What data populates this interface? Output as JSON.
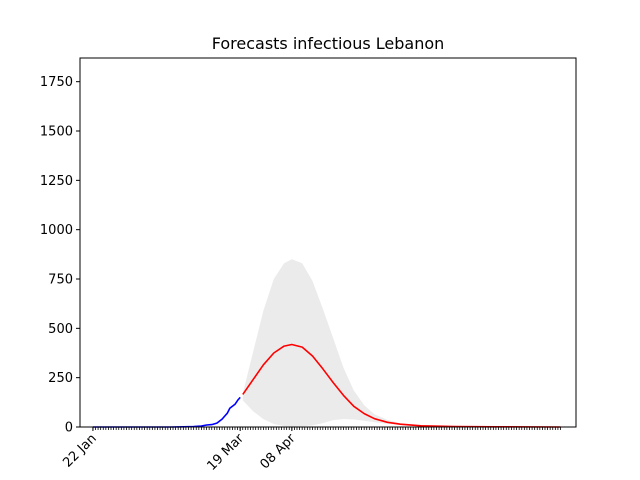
{
  "chart_data": {
    "type": "line",
    "title": "Forecasts infectious Lebanon",
    "xlabel": "",
    "ylabel": "",
    "x_axis": {
      "type": "date",
      "start": "2020-01-22",
      "end": "2020-07-21",
      "tick_labels": [
        "22 Jan",
        "19 Mar",
        "08 Apr"
      ],
      "tick_dates": [
        "2020-01-22",
        "2020-03-19",
        "2020-04-08"
      ]
    },
    "ylim": [
      0,
      1870
    ],
    "y_ticks": [
      0,
      250,
      500,
      750,
      1000,
      1250,
      1500,
      1750
    ],
    "grid": false,
    "series": [
      {
        "role": "observed",
        "color": "#0000ff",
        "points": [
          [
            "2020-01-22",
            0
          ],
          [
            "2020-02-21",
            0
          ],
          [
            "2020-02-26",
            1
          ],
          [
            "2020-03-01",
            2
          ],
          [
            "2020-03-04",
            5
          ],
          [
            "2020-03-06",
            10
          ],
          [
            "2020-03-08",
            12
          ],
          [
            "2020-03-10",
            20
          ],
          [
            "2020-03-11",
            30
          ],
          [
            "2020-03-12",
            40
          ],
          [
            "2020-03-13",
            55
          ],
          [
            "2020-03-14",
            70
          ],
          [
            "2020-03-15",
            95
          ],
          [
            "2020-03-16",
            105
          ],
          [
            "2020-03-17",
            115
          ],
          [
            "2020-03-18",
            135
          ],
          [
            "2020-03-19",
            150
          ]
        ]
      },
      {
        "role": "forecast",
        "color": "#ff0000",
        "points": [
          [
            "2020-03-20",
            165
          ],
          [
            "2020-03-24",
            240
          ],
          [
            "2020-03-28",
            315
          ],
          [
            "2020-04-01",
            375
          ],
          [
            "2020-04-05",
            410
          ],
          [
            "2020-04-08",
            418
          ],
          [
            "2020-04-12",
            405
          ],
          [
            "2020-04-16",
            360
          ],
          [
            "2020-04-20",
            295
          ],
          [
            "2020-04-24",
            225
          ],
          [
            "2020-04-28",
            160
          ],
          [
            "2020-05-02",
            105
          ],
          [
            "2020-05-06",
            68
          ],
          [
            "2020-05-10",
            42
          ],
          [
            "2020-05-15",
            24
          ],
          [
            "2020-05-20",
            14
          ],
          [
            "2020-05-28",
            6
          ],
          [
            "2020-06-10",
            2
          ],
          [
            "2020-06-25",
            1
          ],
          [
            "2020-07-21",
            0
          ]
        ]
      },
      {
        "role": "forecast_interval",
        "color": "#ebebeb",
        "points": [
          [
            "2020-03-20",
            170,
            135
          ],
          [
            "2020-03-24",
            380,
            80
          ],
          [
            "2020-03-28",
            590,
            40
          ],
          [
            "2020-04-01",
            750,
            15
          ],
          [
            "2020-04-05",
            830,
            5
          ],
          [
            "2020-04-08",
            850,
            2
          ],
          [
            "2020-04-12",
            830,
            3
          ],
          [
            "2020-04-16",
            740,
            8
          ],
          [
            "2020-04-20",
            600,
            20
          ],
          [
            "2020-04-24",
            450,
            35
          ],
          [
            "2020-04-28",
            300,
            40
          ],
          [
            "2020-05-02",
            185,
            38
          ],
          [
            "2020-05-06",
            110,
            32
          ],
          [
            "2020-05-10",
            65,
            24
          ],
          [
            "2020-05-15",
            36,
            16
          ],
          [
            "2020-05-20",
            20,
            10
          ],
          [
            "2020-05-28",
            9,
            5
          ],
          [
            "2020-06-10",
            3,
            2
          ],
          [
            "2020-06-25",
            1,
            1
          ],
          [
            "2020-07-21",
            0,
            0
          ]
        ]
      }
    ]
  }
}
